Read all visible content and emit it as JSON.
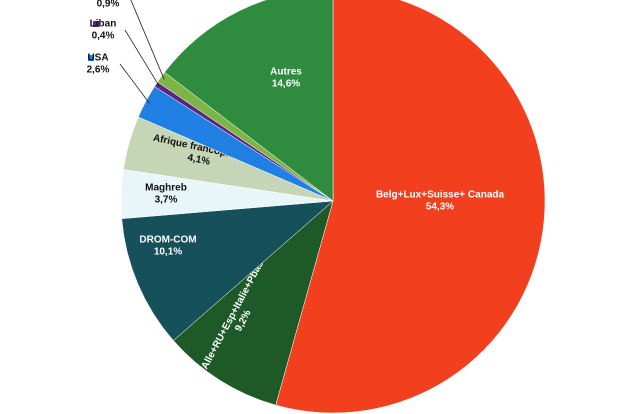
{
  "chart_data": {
    "type": "pie",
    "categories": [
      "Belg+Lux+Suisse+ Canada",
      "Alle+RU+Esp+Italie+Pbas",
      "DROM-COM",
      "Maghreb",
      "Afrique francophone",
      "USA",
      "Liban",
      null,
      "Autres"
    ],
    "values": [
      54.3,
      9.2,
      10.1,
      3.7,
      4.1,
      2.6,
      0.4,
      0.9,
      14.6
    ],
    "value_labels": [
      "54,3%",
      "9,2%",
      "10,1%",
      "3,7%",
      "4,1%",
      "2,6%",
      "0,4%",
      "0,9%",
      "14,6%"
    ],
    "colors": [
      "#f2401f",
      "#1d5a27",
      "#16505a",
      "#e8f6f9",
      "#c6d5b6",
      "#1f7fe3",
      "#5b2382",
      "#7db544",
      "#2f8c3f"
    ]
  }
}
